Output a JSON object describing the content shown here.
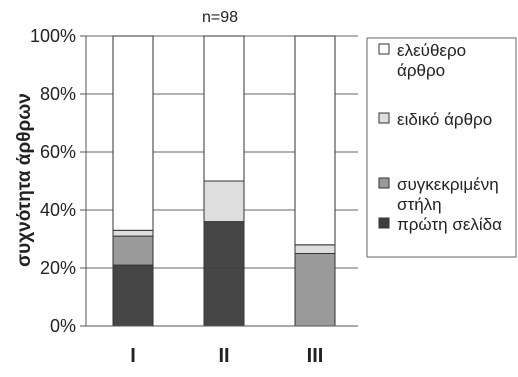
{
  "chart_data": {
    "type": "bar",
    "stacked": true,
    "percent_stacked": true,
    "annotation": "n=98",
    "ylabel": "συχνότητα άρθρων",
    "xlabel": "",
    "ylim": [
      0,
      100
    ],
    "yticks": [
      "0%",
      "20%",
      "40%",
      "60%",
      "80%",
      "100%"
    ],
    "categories": [
      "I",
      "II",
      "III"
    ],
    "series": [
      {
        "name": "πρώτη σελίδα",
        "values": [
          21,
          36,
          0
        ],
        "color": "#3e3e3e"
      },
      {
        "name": "συγκεκριμένη στήλη",
        "values": [
          10,
          0,
          25
        ],
        "color": "#9a9a9a"
      },
      {
        "name": "ειδικό άρθρο",
        "values": [
          2,
          14,
          3
        ],
        "color": "#dedede"
      },
      {
        "name": "ελεύθερο άρθρο",
        "values": [
          67,
          50,
          72
        ],
        "color": "#ffffff"
      }
    ],
    "legend": {
      "placement": "right",
      "entries": [
        [
          "ελεύθερο",
          "άρθρο"
        ],
        [
          "ειδικό άρθρο"
        ],
        [
          "συγκεκριμένη",
          "στήλη"
        ],
        [
          "πρώτη σελίδα"
        ]
      ]
    },
    "grid": true
  }
}
